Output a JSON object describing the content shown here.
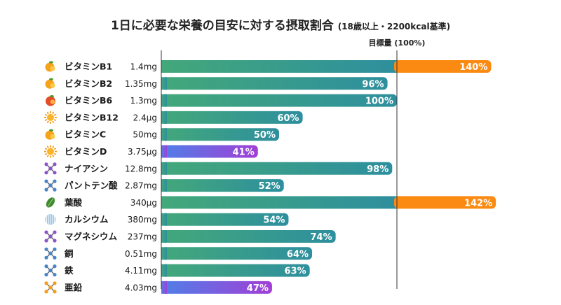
{
  "chart_data": {
    "type": "bar",
    "orientation": "horizontal",
    "title": "1日に必要な栄養の目安に対する摂取割合",
    "subtitle": "(18歳以上・2200kcal基準)",
    "target_label": "目標量 (100%)",
    "unit": "%",
    "categories": [
      "ビタミンB1",
      "ビタミンB2",
      "ビタミンB6",
      "ビタミンB12",
      "ビタミンC",
      "ビタミンD",
      "ナイアシン",
      "パントテン酸",
      "葉酸",
      "カルシウム",
      "マグネシウム",
      "銅",
      "鉄",
      "亜鉛"
    ],
    "amounts": [
      "1.4mg",
      "1.35mg",
      "1.3mg",
      "2.4μg",
      "50mg",
      "3.75μg",
      "12.8mg",
      "2.87mg",
      "340μg",
      "380mg",
      "237mg",
      "0.51mg",
      "4.11mg",
      "4.03mg"
    ],
    "values": [
      140,
      96,
      100,
      60,
      50,
      41,
      98,
      52,
      142,
      54,
      74,
      64,
      63,
      47
    ],
    "value_labels": [
      "140%",
      "96%",
      "100%",
      "60%",
      "50%",
      "41%",
      "98%",
      "52%",
      "142%",
      "54%",
      "74%",
      "64%",
      "63%",
      "47%"
    ],
    "icons": [
      "orange-icon",
      "orange-icon",
      "apple-icon",
      "sun-icon",
      "orange-icon",
      "sun-icon",
      "molecule-icon",
      "molecule-icon",
      "leaf-icon",
      "shell-icon",
      "molecule-icon",
      "molecule-icon",
      "molecule-icon",
      "molecule-icon"
    ],
    "colors": {
      "normal_start": "#43a87a",
      "normal_end": "#2e8f9e",
      "low_start": "#4f7fe8",
      "low_end": "#a23fd6",
      "over": "#fb8a13"
    }
  }
}
